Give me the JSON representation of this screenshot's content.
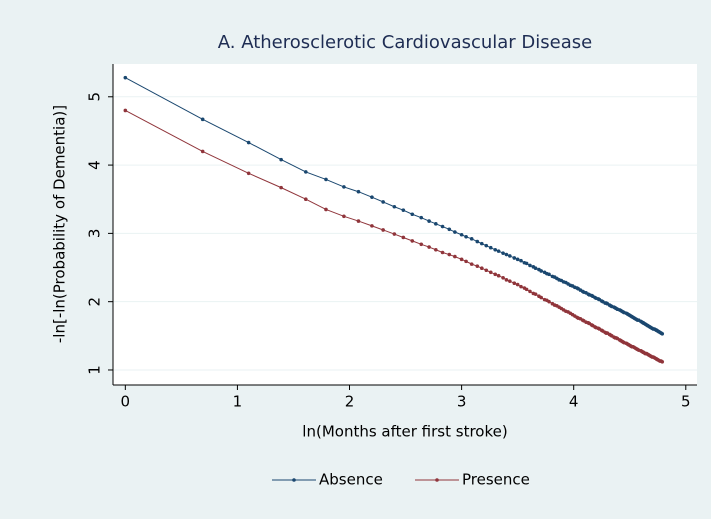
{
  "chart_data": {
    "type": "line",
    "title": "A. Atherosclerotic Cardiovascular Disease",
    "x_label": "ln(Months after first stroke)",
    "y_label": "-ln[-ln(Probability of Dementia)]",
    "xlim": [
      -0.11,
      5.1
    ],
    "ylim": [
      0.78,
      5.48
    ],
    "xticks": [
      0,
      1,
      2,
      3,
      4,
      5
    ],
    "yticks": [
      1,
      2,
      3,
      4,
      5
    ],
    "grid": true,
    "x": [
      0,
      0.69,
      1.1,
      1.39,
      1.61,
      1.79,
      1.95,
      2.08,
      2.2,
      2.3,
      2.4,
      2.48,
      2.56,
      2.64,
      2.71,
      2.77,
      2.83,
      2.89,
      2.94,
      3.0,
      3.04,
      3.09,
      3.14,
      3.18,
      3.22,
      3.26,
      3.3,
      3.33,
      3.37,
      3.4,
      3.43,
      3.47,
      3.5,
      3.53,
      3.56,
      3.58,
      3.61,
      3.64,
      3.66,
      3.69,
      3.71,
      3.74,
      3.76,
      3.78,
      3.81,
      3.83,
      3.85,
      3.87,
      3.89,
      3.91,
      3.93,
      3.95,
      3.97,
      3.99,
      4.01,
      4.03,
      4.04,
      4.06,
      4.08,
      4.09,
      4.11,
      4.13,
      4.14,
      4.16,
      4.17,
      4.19,
      4.2,
      4.22,
      4.23,
      4.25,
      4.26,
      4.28,
      4.29,
      4.3,
      4.32,
      4.33,
      4.34,
      4.36,
      4.37,
      4.38,
      4.39,
      4.41,
      4.42,
      4.43,
      4.44,
      4.45,
      4.47,
      4.48,
      4.49,
      4.5,
      4.51,
      4.52,
      4.53,
      4.54,
      4.55,
      4.56,
      4.57,
      4.58,
      4.6,
      4.61,
      4.62,
      4.62,
      4.63,
      4.64,
      4.65,
      4.66,
      4.67,
      4.68,
      4.69,
      4.7,
      4.71,
      4.72,
      4.73,
      4.74,
      4.74,
      4.75,
      4.76,
      4.77,
      4.78,
      4.79
    ],
    "series": [
      {
        "name": "Absence",
        "color": "#1a476f",
        "values": [
          5.28,
          4.67,
          4.33,
          4.08,
          3.9,
          3.79,
          3.68,
          3.61,
          3.53,
          3.46,
          3.39,
          3.34,
          3.28,
          3.23,
          3.18,
          3.14,
          3.1,
          3.06,
          3.02,
          2.98,
          2.95,
          2.92,
          2.88,
          2.85,
          2.82,
          2.79,
          2.76,
          2.74,
          2.71,
          2.69,
          2.67,
          2.64,
          2.62,
          2.6,
          2.57,
          2.56,
          2.53,
          2.51,
          2.49,
          2.47,
          2.45,
          2.43,
          2.41,
          2.4,
          2.37,
          2.36,
          2.34,
          2.32,
          2.31,
          2.29,
          2.28,
          2.26,
          2.24,
          2.23,
          2.21,
          2.2,
          2.19,
          2.17,
          2.15,
          2.14,
          2.13,
          2.11,
          2.1,
          2.09,
          2.08,
          2.06,
          2.05,
          2.04,
          2.03,
          2.01,
          2.0,
          1.98,
          1.98,
          1.97,
          1.95,
          1.94,
          1.93,
          1.92,
          1.91,
          1.9,
          1.89,
          1.88,
          1.87,
          1.86,
          1.85,
          1.84,
          1.83,
          1.82,
          1.81,
          1.8,
          1.79,
          1.78,
          1.77,
          1.76,
          1.75,
          1.74,
          1.73,
          1.73,
          1.71,
          1.7,
          1.69,
          1.69,
          1.68,
          1.67,
          1.66,
          1.65,
          1.64,
          1.63,
          1.62,
          1.61,
          1.6,
          1.6,
          1.59,
          1.58,
          1.58,
          1.57,
          1.56,
          1.55,
          1.54,
          1.53
        ]
      },
      {
        "name": "Presence",
        "color": "#90353b",
        "values": [
          4.8,
          4.2,
          3.88,
          3.67,
          3.5,
          3.35,
          3.25,
          3.18,
          3.11,
          3.05,
          2.99,
          2.94,
          2.89,
          2.84,
          2.8,
          2.76,
          2.72,
          2.69,
          2.66,
          2.62,
          2.59,
          2.55,
          2.52,
          2.49,
          2.46,
          2.43,
          2.4,
          2.38,
          2.35,
          2.32,
          2.3,
          2.27,
          2.25,
          2.22,
          2.2,
          2.18,
          2.15,
          2.12,
          2.11,
          2.08,
          2.06,
          2.03,
          2.02,
          2.0,
          1.97,
          1.95,
          1.94,
          1.92,
          1.9,
          1.88,
          1.86,
          1.85,
          1.83,
          1.81,
          1.79,
          1.77,
          1.76,
          1.75,
          1.73,
          1.72,
          1.7,
          1.69,
          1.68,
          1.66,
          1.65,
          1.63,
          1.62,
          1.61,
          1.6,
          1.58,
          1.57,
          1.55,
          1.54,
          1.54,
          1.52,
          1.51,
          1.5,
          1.48,
          1.47,
          1.47,
          1.46,
          1.44,
          1.43,
          1.42,
          1.41,
          1.4,
          1.39,
          1.38,
          1.37,
          1.36,
          1.35,
          1.34,
          1.34,
          1.33,
          1.32,
          1.31,
          1.3,
          1.29,
          1.28,
          1.27,
          1.26,
          1.26,
          1.25,
          1.24,
          1.24,
          1.23,
          1.22,
          1.21,
          1.2,
          1.19,
          1.19,
          1.18,
          1.17,
          1.16,
          1.16,
          1.15,
          1.14,
          1.13,
          1.13,
          1.12
        ]
      }
    ]
  }
}
